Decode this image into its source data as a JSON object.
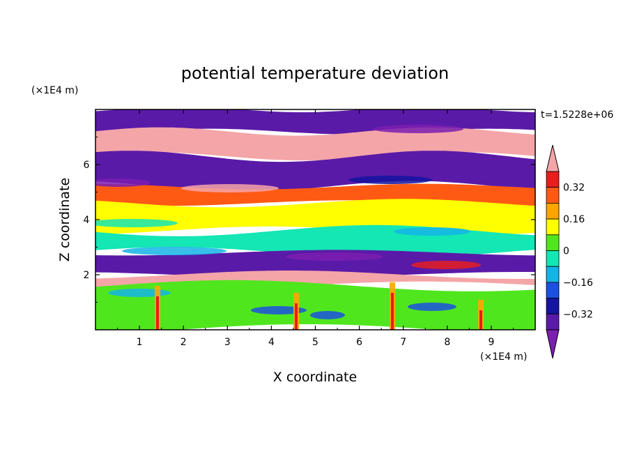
{
  "chart_data": {
    "type": "heatmap",
    "title": "potential temperature deviation",
    "xlabel": "X coordinate",
    "ylabel": "Z coordinate",
    "x_unit": "(×1E4 m)",
    "y_unit": "(×1E4 m)",
    "time_label": "t=1.5228e+06",
    "xlim": [
      0,
      10
    ],
    "ylim": [
      0,
      8
    ],
    "x_ticks": [
      "1",
      "2",
      "3",
      "4",
      "5",
      "6",
      "7",
      "8",
      "9"
    ],
    "y_ticks": [
      "2",
      "4",
      "6"
    ],
    "colorbar": {
      "levels": [
        -0.4,
        -0.32,
        -0.24,
        -0.16,
        -0.08,
        0,
        0.08,
        0.16,
        0.24,
        0.32,
        0.4
      ],
      "labels": [
        "0.32",
        "0.16",
        "0",
        "−0.16",
        "−0.32"
      ],
      "colors": [
        "#7b1fb0",
        "#5a1aa8",
        "#1414a0",
        "#1c50e0",
        "#14b4e6",
        "#14e6b4",
        "#50e61e",
        "#ffff00",
        "#ffa500",
        "#ff5a14",
        "#e61e1e",
        "#f4a5a8"
      ]
    },
    "field_layers": [
      {
        "z": [
          7.2,
          8.0
        ],
        "value": -0.4
      },
      {
        "z": [
          6.3,
          7.2
        ],
        "value": 0.4
      },
      {
        "z": [
          5.2,
          6.3
        ],
        "value": -0.4
      },
      {
        "z": [
          4.6,
          5.2
        ],
        "value": 0.3
      },
      {
        "z": [
          3.6,
          4.6
        ],
        "value": 0.1
      },
      {
        "z": [
          2.8,
          3.6
        ],
        "value": -0.05
      },
      {
        "z": [
          2.0,
          2.8
        ],
        "value": -0.35
      },
      {
        "z": [
          1.6,
          2.0
        ],
        "value": 0.4
      },
      {
        "z": [
          0.0,
          1.6
        ],
        "value": 0.02
      }
    ]
  }
}
